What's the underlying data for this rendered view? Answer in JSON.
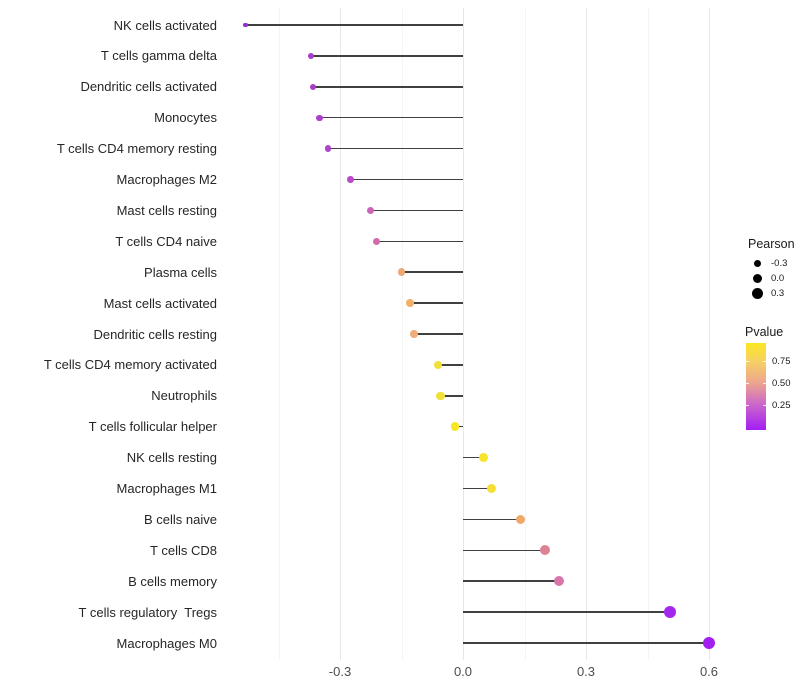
{
  "chart_data": {
    "type": "scatter",
    "subtype": "lollipop",
    "title": "",
    "xlabel": "",
    "ylabel": "",
    "x_ticks": [
      -0.3,
      0.0,
      0.3,
      0.6
    ],
    "x_tick_labels": [
      "-0.3",
      "0.0",
      "0.3",
      "0.6"
    ],
    "x_minor_ticks": [
      -0.45,
      -0.15,
      0.15,
      0.45
    ],
    "xlim": [
      -0.585,
      0.665
    ],
    "grid": "on",
    "points": [
      {
        "label": "NK cells activated",
        "pearson": -0.53,
        "pvalue": 0.1,
        "color": "#9a2ad8"
      },
      {
        "label": "T cells gamma delta",
        "pearson": -0.37,
        "pvalue": 0.15,
        "color": "#a83cca"
      },
      {
        "label": "Dendritic cells activated",
        "pearson": -0.365,
        "pvalue": 0.15,
        "color": "#a93dca"
      },
      {
        "label": "Monocytes",
        "pearson": -0.35,
        "pvalue": 0.16,
        "color": "#aa40cb"
      },
      {
        "label": "T cells CD4 memory resting",
        "pearson": -0.33,
        "pvalue": 0.17,
        "color": "#ac45cc"
      },
      {
        "label": "Macrophages M2",
        "pearson": -0.275,
        "pvalue": 0.21,
        "color": "#b94ac8"
      },
      {
        "label": "Mast cells resting",
        "pearson": -0.225,
        "pvalue": 0.3,
        "color": "#cc64b6"
      },
      {
        "label": "T cells CD4 naive",
        "pearson": -0.21,
        "pvalue": 0.33,
        "color": "#d06bab"
      },
      {
        "label": "Plasma cells",
        "pearson": -0.15,
        "pvalue": 0.52,
        "color": "#efa878"
      },
      {
        "label": "Mast cells activated",
        "pearson": -0.13,
        "pvalue": 0.55,
        "color": "#f2af69"
      },
      {
        "label": "Dendritic cells resting",
        "pearson": -0.12,
        "pvalue": 0.53,
        "color": "#f0ac7b"
      },
      {
        "label": "T cells CD4 memory activated",
        "pearson": -0.06,
        "pvalue": 0.74,
        "color": "#f2df3a"
      },
      {
        "label": "Neutrophils",
        "pearson": -0.055,
        "pvalue": 0.76,
        "color": "#f0e138"
      },
      {
        "label": "T cells follicular helper",
        "pearson": -0.02,
        "pvalue": 0.86,
        "color": "#f8e622"
      },
      {
        "label": "NK cells resting",
        "pearson": 0.05,
        "pvalue": 0.84,
        "color": "#f8e428"
      },
      {
        "label": "Macrophages M1",
        "pearson": 0.07,
        "pvalue": 0.78,
        "color": "#f5df33"
      },
      {
        "label": "B cells naive",
        "pearson": 0.14,
        "pvalue": 0.52,
        "color": "#f0a868"
      },
      {
        "label": "T cells CD8",
        "pearson": 0.2,
        "pvalue": 0.41,
        "color": "#dd8295"
      },
      {
        "label": "B cells memory",
        "pearson": 0.235,
        "pvalue": 0.36,
        "color": "#d876ac"
      },
      {
        "label": "T cells regulatory  Tregs",
        "pearson": 0.505,
        "pvalue": 0.1,
        "color": "#a428ec"
      },
      {
        "label": "Macrophages M0",
        "pearson": 0.6,
        "pvalue": 0.07,
        "color": "#a21ff0"
      }
    ],
    "legend": {
      "position": "right",
      "pearson": {
        "title": "Pearson",
        "items": [
          {
            "label": "-0.3"
          },
          {
            "label": "0.0"
          },
          {
            "label": "0.3"
          }
        ]
      },
      "pvalue": {
        "title": "Pvalue",
        "tick_labels": [
          "0.75",
          "0.50",
          "0.25"
        ],
        "gradient_top_to_bottom": [
          "#fbe723",
          "#f6d163",
          "#eca48f",
          "#cb66cb",
          "#a21ef5"
        ]
      }
    },
    "stem_color": "#404040"
  }
}
